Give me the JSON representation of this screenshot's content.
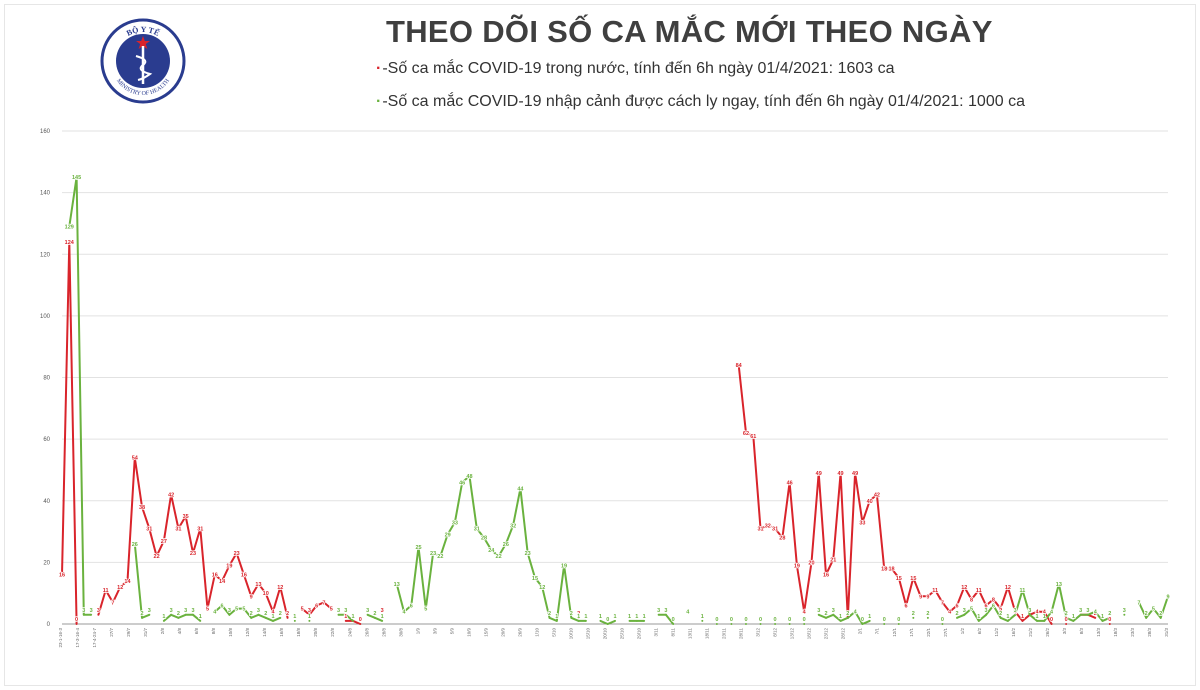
{
  "header": {
    "logo_top_text": "BỘ Y TẾ",
    "logo_bottom_text": "MINISTRY OF HEALTH",
    "title": "THEO DÕI SỐ CA MẮC MỚI THEO NGÀY",
    "legend": [
      {
        "marker": "·",
        "text": "-Số ca mắc COVID-19 trong nước, tính đến 6h ngày 01/4/2021: 1603 ca",
        "color": "#d9242b"
      },
      {
        "marker": "·",
        "text": "-Số ca mắc COVID-19 nhập cảnh được cách ly ngay, tính đến 6h ngày 01/4/2021: 1000 ca",
        "color": "#6ab23e"
      }
    ]
  },
  "chart_data": {
    "type": "line",
    "title": "THEO DÕI SỐ CA MẮC MỚI THEO NGÀY",
    "ylim": [
      0,
      160
    ],
    "yticks": [
      0,
      20,
      40,
      60,
      80,
      100,
      120,
      140,
      160
    ],
    "grid": true,
    "legend_position": "top",
    "x_count": 153,
    "xtick_labels": [
      "23-1-16-3",
      "17-3-16-4",
      "17-4-24-7",
      "27/7",
      "29/7",
      "31/7",
      "2/8",
      "4/8",
      "6/8",
      "8/8",
      "10/8",
      "12/8",
      "14/8",
      "16/8",
      "18/8",
      "20/8",
      "22/8",
      "24/8",
      "26/8",
      "28/8",
      "30/8",
      "1/9",
      "3/9",
      "5/9",
      "10/9",
      "15/9",
      "20/9",
      "26/9",
      "1/10",
      "5/10",
      "10/10",
      "15/10",
      "20/10",
      "25/10",
      "29/10",
      "3/11",
      "8/11",
      "13/11",
      "18/11",
      "23/11",
      "28/11",
      "3/12",
      "8/12",
      "13/12",
      "18/12",
      "23/12",
      "28/12",
      "2/1",
      "7/1",
      "12/1",
      "17/1",
      "22/1",
      "27/1",
      "1/2",
      "6/2",
      "11/2",
      "16/2",
      "21/2",
      "26/2",
      "3/3",
      "8/3",
      "13/3",
      "18/3",
      "23/3",
      "28/3",
      "31/3"
    ],
    "series": [
      {
        "name": "Số ca mắc COVID-19 trong nước",
        "color": "#d9242b",
        "points": [
          [
            0,
            16
          ],
          [
            1,
            124
          ],
          [
            2,
            0
          ],
          [
            5,
            3
          ],
          [
            6,
            11
          ],
          [
            7,
            7
          ],
          [
            8,
            12
          ],
          [
            9,
            14
          ],
          [
            10,
            54
          ],
          [
            11,
            38
          ],
          [
            12,
            31
          ],
          [
            13,
            22
          ],
          [
            14,
            27
          ],
          [
            15,
            42
          ],
          [
            16,
            31
          ],
          [
            17,
            35
          ],
          [
            18,
            23
          ],
          [
            19,
            31
          ],
          [
            20,
            5
          ],
          [
            21,
            16
          ],
          [
            22,
            14
          ],
          [
            23,
            19
          ],
          [
            24,
            23
          ],
          [
            25,
            16
          ],
          [
            26,
            9
          ],
          [
            27,
            13
          ],
          [
            28,
            10
          ],
          [
            29,
            4
          ],
          [
            30,
            12
          ],
          [
            31,
            2
          ],
          [
            33,
            5
          ],
          [
            34,
            3
          ],
          [
            35,
            6
          ],
          [
            36,
            7
          ],
          [
            37,
            5
          ],
          [
            39,
            1
          ],
          [
            40,
            1
          ],
          [
            41,
            0
          ],
          [
            44,
            3
          ],
          [
            71,
            2
          ],
          [
            93,
            84
          ],
          [
            94,
            62
          ],
          [
            95,
            61
          ],
          [
            96,
            31
          ],
          [
            97,
            32
          ],
          [
            98,
            31
          ],
          [
            99,
            28
          ],
          [
            100,
            46
          ],
          [
            101,
            19
          ],
          [
            102,
            4
          ],
          [
            103,
            20
          ],
          [
            104,
            49
          ],
          [
            105,
            16
          ],
          [
            106,
            21
          ],
          [
            107,
            49
          ],
          [
            108,
            2
          ],
          [
            109,
            49
          ],
          [
            110,
            33
          ],
          [
            111,
            40
          ],
          [
            112,
            42
          ],
          [
            113,
            18
          ],
          [
            114,
            18
          ],
          [
            115,
            15
          ],
          [
            116,
            6
          ],
          [
            117,
            15
          ],
          [
            118,
            9
          ],
          [
            119,
            9
          ],
          [
            120,
            11
          ],
          [
            121,
            7
          ],
          [
            122,
            4
          ],
          [
            123,
            6
          ],
          [
            124,
            12
          ],
          [
            125,
            8
          ],
          [
            126,
            11
          ],
          [
            127,
            6
          ],
          [
            128,
            8
          ],
          [
            129,
            5
          ],
          [
            130,
            12
          ],
          [
            131,
            4
          ],
          [
            132,
            1
          ],
          [
            133,
            3
          ],
          [
            134,
            4
          ],
          [
            135,
            4
          ],
          [
            136,
            0
          ],
          [
            138,
            0
          ],
          [
            140,
            3
          ],
          [
            141,
            3
          ],
          [
            142,
            2
          ],
          [
            144,
            0
          ]
        ]
      },
      {
        "name": "Số ca mắc COVID-19 nhập cảnh được cách ly ngay",
        "color": "#6ab23e",
        "points": [
          [
            1,
            129
          ],
          [
            2,
            145
          ],
          [
            3,
            3
          ],
          [
            4,
            3
          ],
          [
            10,
            26
          ],
          [
            11,
            2
          ],
          [
            12,
            3
          ],
          [
            14,
            1
          ],
          [
            15,
            3
          ],
          [
            16,
            2
          ],
          [
            17,
            3
          ],
          [
            18,
            3
          ],
          [
            19,
            1
          ],
          [
            21,
            4
          ],
          [
            22,
            6
          ],
          [
            23,
            3
          ],
          [
            24,
            5
          ],
          [
            25,
            5
          ],
          [
            26,
            2
          ],
          [
            27,
            3
          ],
          [
            28,
            2
          ],
          [
            29,
            1
          ],
          [
            30,
            2
          ],
          [
            32,
            1
          ],
          [
            34,
            1
          ],
          [
            38,
            3
          ],
          [
            39,
            3
          ],
          [
            40,
            1
          ],
          [
            42,
            3
          ],
          [
            43,
            2
          ],
          [
            44,
            1
          ],
          [
            46,
            13
          ],
          [
            47,
            4
          ],
          [
            48,
            6
          ],
          [
            49,
            25
          ],
          [
            50,
            5
          ],
          [
            51,
            23
          ],
          [
            52,
            22
          ],
          [
            53,
            29
          ],
          [
            54,
            33
          ],
          [
            55,
            46
          ],
          [
            56,
            48
          ],
          [
            57,
            31
          ],
          [
            58,
            28
          ],
          [
            59,
            24
          ],
          [
            60,
            22
          ],
          [
            61,
            26
          ],
          [
            62,
            32
          ],
          [
            63,
            44
          ],
          [
            64,
            23
          ],
          [
            65,
            15
          ],
          [
            66,
            12
          ],
          [
            67,
            2
          ],
          [
            68,
            1
          ],
          [
            69,
            19
          ],
          [
            70,
            2
          ],
          [
            71,
            1
          ],
          [
            72,
            1
          ],
          [
            74,
            1
          ],
          [
            75,
            0
          ],
          [
            76,
            1
          ],
          [
            78,
            1
          ],
          [
            79,
            1
          ],
          [
            80,
            1
          ],
          [
            82,
            3
          ],
          [
            83,
            3
          ],
          [
            84,
            0
          ],
          [
            86,
            4
          ],
          [
            88,
            1
          ],
          [
            90,
            0
          ],
          [
            92,
            0
          ],
          [
            94,
            0
          ],
          [
            96,
            0
          ],
          [
            98,
            0
          ],
          [
            100,
            0
          ],
          [
            102,
            0
          ],
          [
            104,
            3
          ],
          [
            105,
            2
          ],
          [
            106,
            3
          ],
          [
            107,
            1
          ],
          [
            108,
            2
          ],
          [
            109,
            4
          ],
          [
            110,
            0
          ],
          [
            111,
            1
          ],
          [
            113,
            0
          ],
          [
            115,
            0
          ],
          [
            117,
            2
          ],
          [
            119,
            2
          ],
          [
            121,
            0
          ],
          [
            123,
            2
          ],
          [
            124,
            3
          ],
          [
            125,
            5
          ],
          [
            126,
            1
          ],
          [
            127,
            3
          ],
          [
            128,
            6
          ],
          [
            129,
            2
          ],
          [
            130,
            1
          ],
          [
            131,
            3
          ],
          [
            132,
            11
          ],
          [
            133,
            3
          ],
          [
            134,
            1
          ],
          [
            135,
            1
          ],
          [
            136,
            4
          ],
          [
            137,
            13
          ],
          [
            138,
            2
          ],
          [
            139,
            1
          ],
          [
            140,
            3
          ],
          [
            141,
            3
          ],
          [
            142,
            4
          ],
          [
            143,
            1
          ],
          [
            144,
            2
          ],
          [
            146,
            3
          ],
          [
            148,
            7
          ],
          [
            149,
            2
          ],
          [
            150,
            5
          ],
          [
            151,
            2
          ],
          [
            152,
            9
          ]
        ]
      }
    ]
  }
}
